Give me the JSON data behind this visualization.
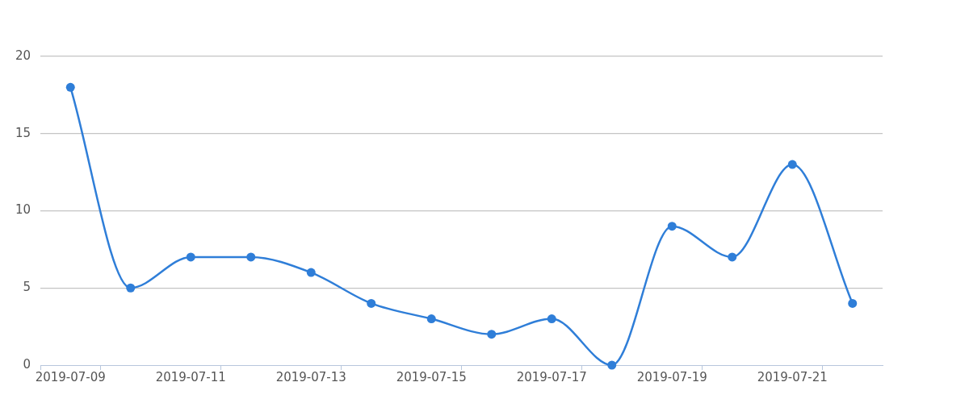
{
  "chart_data": {
    "type": "line",
    "categories": [
      "2019-07-09",
      null,
      "2019-07-11",
      null,
      "2019-07-13",
      null,
      "2019-07-15",
      null,
      "2019-07-17",
      null,
      "2019-07-19",
      null,
      "2019-07-21",
      null
    ],
    "series": [
      {
        "color": "#2f7ed8",
        "values": [
          18,
          5,
          7,
          7,
          6,
          4,
          3,
          2,
          3,
          0,
          9,
          7,
          13,
          4
        ]
      }
    ],
    "ylim": [
      0,
      20
    ],
    "yticks": [
      0,
      5,
      10,
      15,
      20
    ],
    "grid": "y",
    "marker": "circle",
    "line_style": "solid"
  }
}
